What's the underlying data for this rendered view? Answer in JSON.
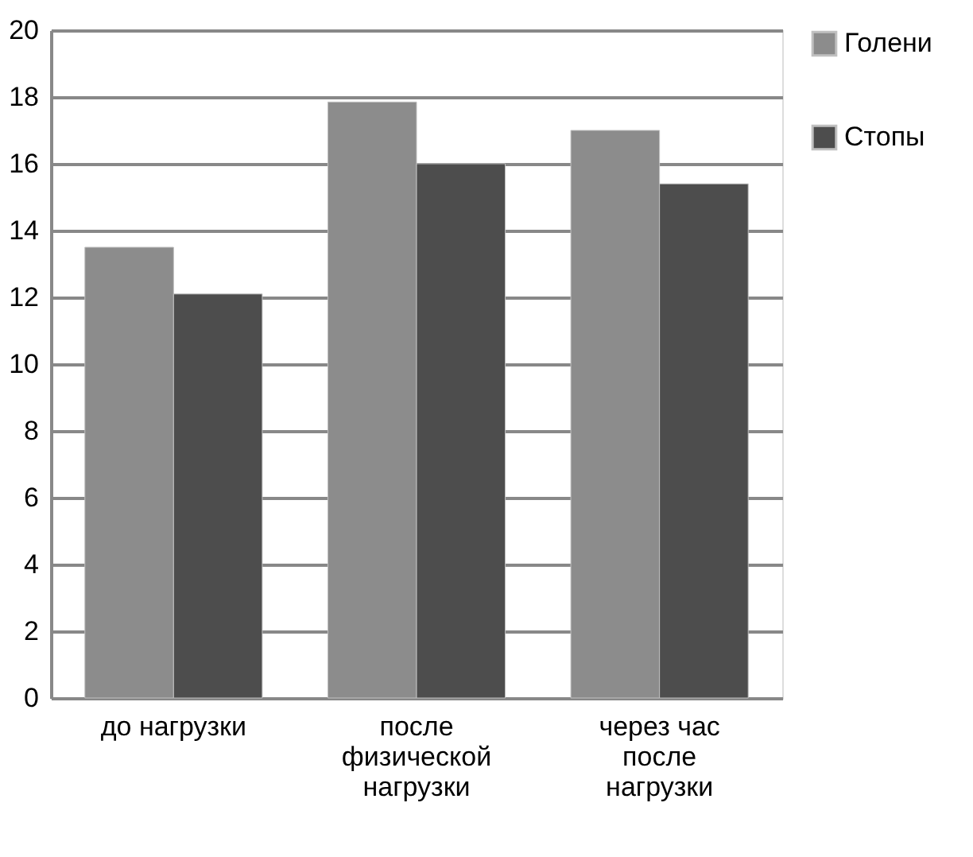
{
  "chart_data": {
    "type": "bar",
    "categories": [
      "до нагрузки",
      "после физической нагрузки",
      "через час после нагрузки"
    ],
    "series": [
      {
        "name": "Голени",
        "color": "#8c8c8c",
        "values": [
          13.5,
          17.85,
          17.0
        ]
      },
      {
        "name": "Стопы",
        "color": "#4d4d4d",
        "values": [
          12.1,
          16.0,
          15.4
        ]
      }
    ],
    "ylim": [
      0,
      20
    ],
    "yticks": [
      0,
      2,
      4,
      6,
      8,
      10,
      12,
      14,
      16,
      18,
      20
    ],
    "grid": "y",
    "legend": "right"
  }
}
